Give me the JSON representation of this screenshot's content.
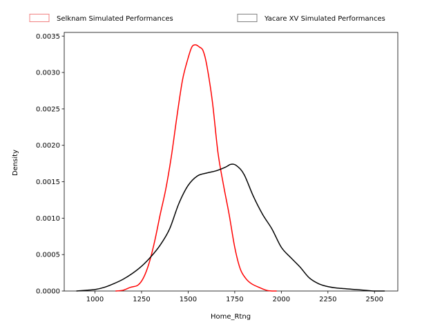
{
  "chart_data": {
    "type": "line",
    "title": "",
    "xlabel": "Home_Rtng",
    "ylabel": "Density",
    "xlim": [
      835,
      2625
    ],
    "ylim": [
      0,
      0.00355
    ],
    "x_ticks": [
      1000,
      1250,
      1500,
      1750,
      2000,
      2250,
      2500
    ],
    "x_tick_labels": [
      "1000",
      "1250",
      "1500",
      "1750",
      "2000",
      "2250",
      "2500"
    ],
    "y_ticks": [
      0,
      0.0005,
      0.001,
      0.0015,
      0.002,
      0.0025,
      0.003,
      0.0035
    ],
    "y_tick_labels": [
      "0.0000",
      "0.0005",
      "0.0010",
      "0.0015",
      "0.0020",
      "0.0025",
      "0.0030",
      "0.0035"
    ],
    "grid": false,
    "legend_placement": "top, above plot",
    "series": [
      {
        "name": "Selknam Simulated Performances",
        "color": "#ff0000",
        "legend_edge_color": "#f08080",
        "x": [
          1110,
          1150,
          1190,
          1230,
          1260,
          1290,
          1320,
          1350,
          1380,
          1410,
          1440,
          1470,
          1500,
          1520,
          1540,
          1560,
          1580,
          1600,
          1630,
          1660,
          1690,
          1720,
          1750,
          1780,
          1810,
          1840,
          1880,
          1920,
          1950,
          1975
        ],
        "y": [
          0.0,
          1e-05,
          5e-05,
          8e-05,
          0.00018,
          0.00038,
          0.00068,
          0.00105,
          0.0014,
          0.00185,
          0.0024,
          0.0029,
          0.0032,
          0.00335,
          0.00338,
          0.00335,
          0.0033,
          0.0031,
          0.0026,
          0.0019,
          0.00145,
          0.00105,
          0.0006,
          0.0003,
          0.00017,
          0.0001,
          5e-05,
          1e-05,
          0.0,
          0.0
        ]
      },
      {
        "name": "Yacare XV Simulated Performances",
        "color": "#000000",
        "legend_edge_color": "#808080",
        "x": [
          900,
          950,
          1000,
          1050,
          1100,
          1150,
          1200,
          1250,
          1300,
          1350,
          1400,
          1450,
          1500,
          1550,
          1600,
          1650,
          1700,
          1730,
          1760,
          1800,
          1850,
          1900,
          1950,
          2000,
          2050,
          2100,
          2150,
          2200,
          2250,
          2300,
          2350,
          2400,
          2450,
          2500,
          2555
        ],
        "y": [
          0.0,
          1e-05,
          2e-05,
          5e-05,
          0.0001,
          0.00016,
          0.00024,
          0.00034,
          0.00047,
          0.00063,
          0.00085,
          0.0012,
          0.00145,
          0.00158,
          0.00162,
          0.00165,
          0.0017,
          0.00174,
          0.00172,
          0.0016,
          0.0013,
          0.00105,
          0.00085,
          0.0006,
          0.00046,
          0.00033,
          0.00018,
          0.0001,
          6e-05,
          4e-05,
          3e-05,
          2e-05,
          1e-05,
          0.0,
          0.0
        ]
      }
    ]
  }
}
